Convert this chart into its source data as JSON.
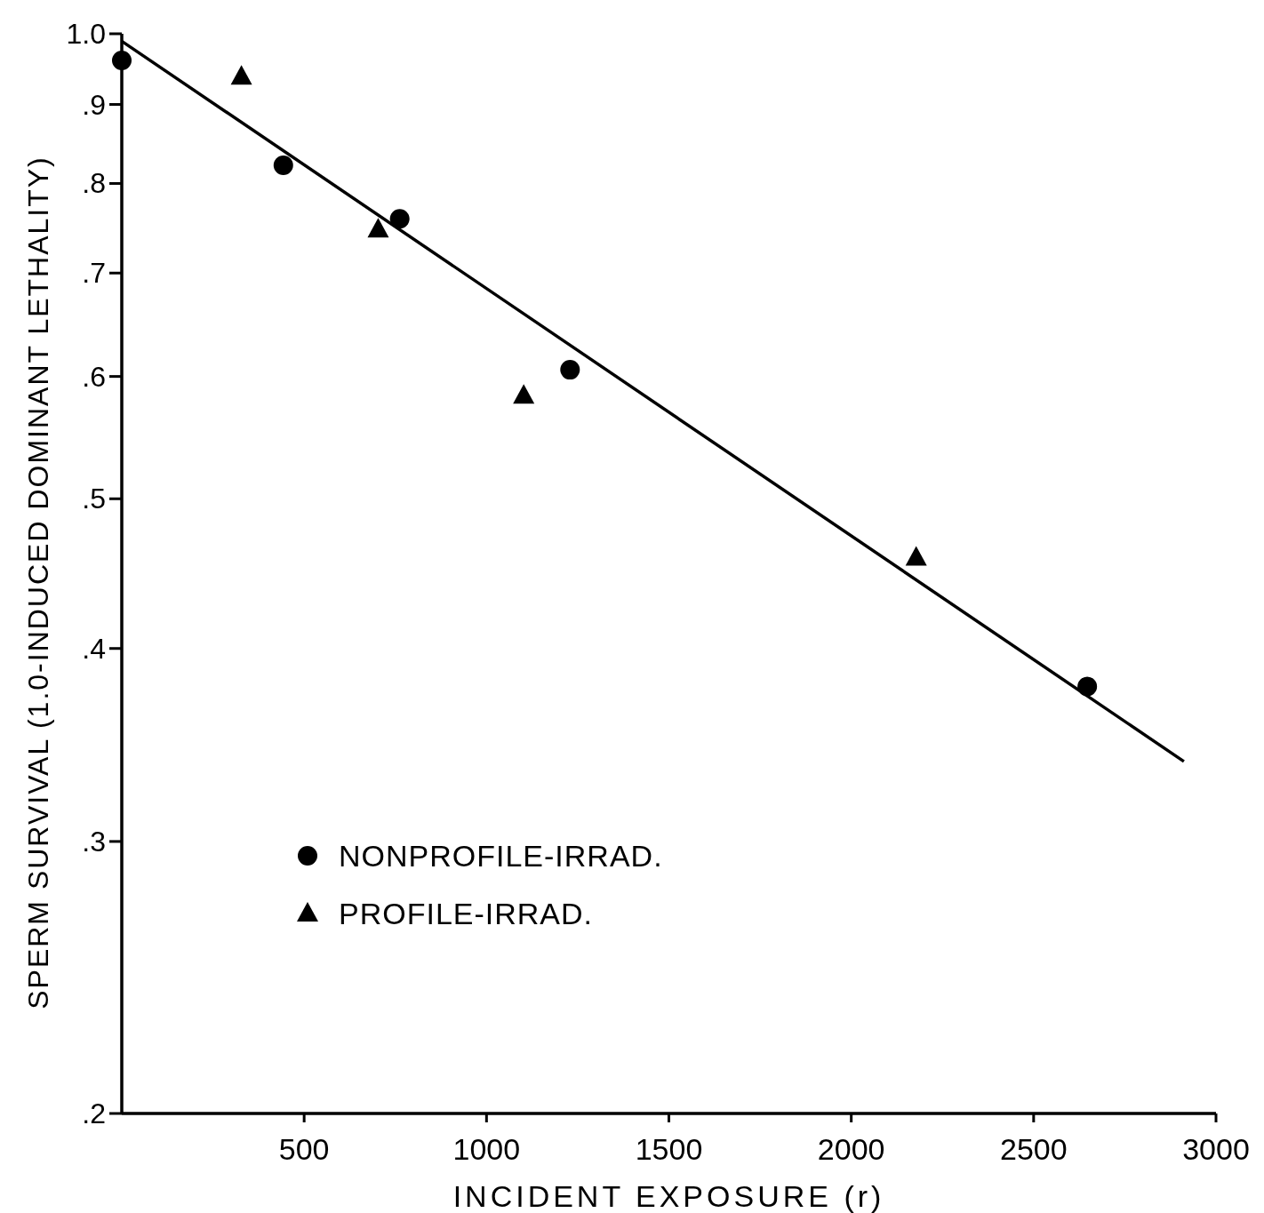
{
  "chart_data": {
    "type": "scatter",
    "xlabel": "INCIDENT EXPOSURE (r)",
    "ylabel": "SPERM SURVIVAL (1.0-INDUCED DOMINANT LETHALITY)",
    "log": "y",
    "xlim": [
      0,
      3000
    ],
    "xticks": [
      500,
      1000,
      1500,
      2000,
      2500,
      3000
    ],
    "ylim": [
      0.2,
      1.0
    ],
    "yticks": [
      {
        "value": 0.2,
        "label": ".2"
      },
      {
        "value": 0.3,
        "label": ".3"
      },
      {
        "value": 0.4,
        "label": ".4"
      },
      {
        "value": 0.5,
        "label": ".5"
      },
      {
        "value": 0.6,
        "label": ".6"
      },
      {
        "value": 0.7,
        "label": ".7"
      },
      {
        "value": 0.8,
        "label": ".8"
      },
      {
        "value": 0.9,
        "label": ".9"
      },
      {
        "value": 1.0,
        "label": "1.0"
      }
    ],
    "grid": false,
    "legend": "left",
    "series": [
      {
        "name": "NONPROFILE-IRRAD.",
        "type": "scatter",
        "marker": "circle",
        "color": "#000000",
        "x": [
          0,
          443,
          762,
          1229,
          2647
        ],
        "values": [
          0.961,
          0.822,
          0.759,
          0.606,
          0.378
        ]
      },
      {
        "name": "PROFILE-IRRAD.",
        "type": "scatter",
        "marker": "triangle",
        "color": "#000000",
        "x": [
          328,
          703,
          1102,
          2178
        ],
        "values": [
          0.938,
          0.747,
          0.583,
          0.458
        ]
      },
      {
        "type": "line",
        "marker": "none",
        "color": "#000000",
        "x": [
          0,
          2912
        ],
        "values": [
          0.989,
          0.338
        ]
      }
    ]
  }
}
